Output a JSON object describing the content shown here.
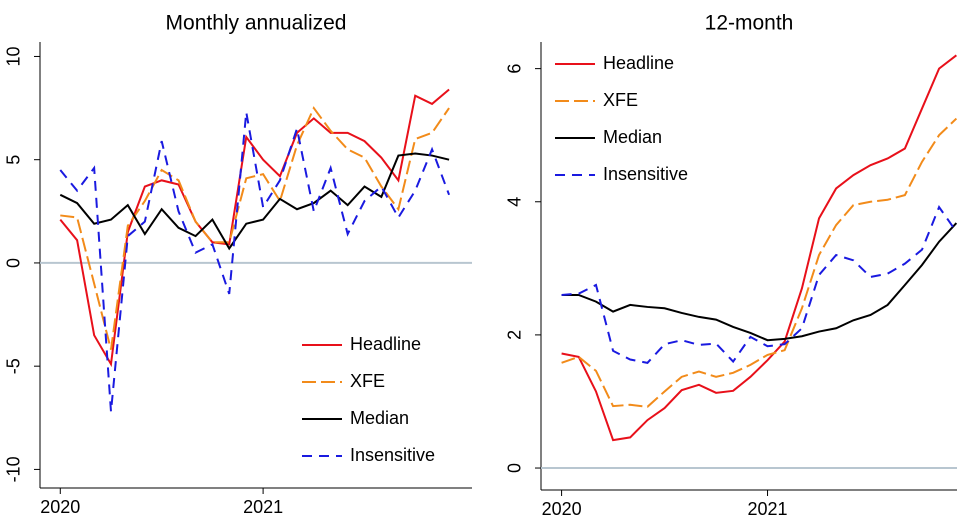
{
  "chart_data": [
    {
      "type": "line",
      "title": "Monthly annualized",
      "x": [
        2020,
        2020.083,
        2020.167,
        2020.25,
        2020.333,
        2020.417,
        2020.5,
        2020.583,
        2020.667,
        2020.75,
        2020.833,
        2020.917,
        2021,
        2021.083,
        2021.167,
        2021.25,
        2021.333,
        2021.417,
        2021.5,
        2021.583,
        2021.667,
        2021.75,
        2021.833,
        2021.917
      ],
      "xlim": [
        2019.9,
        2022.03
      ],
      "xticks": [
        2020,
        2021
      ],
      "ylim": [
        -10.9,
        10.7
      ],
      "yticks": [
        -10,
        -5,
        0,
        5,
        10
      ],
      "legend": "bottom-right",
      "series": [
        {
          "name": "Headline",
          "color": "#e8101a",
          "dash": "solid",
          "values": [
            2.1,
            1.1,
            -3.5,
            -4.9,
            1.5,
            3.7,
            4.0,
            3.8,
            2.0,
            1.0,
            0.9,
            6.1,
            5.0,
            4.2,
            6.3,
            7.0,
            6.3,
            6.3,
            5.9,
            5.1,
            4.0,
            8.1,
            7.7,
            8.4
          ]
        },
        {
          "name": "XFE",
          "color": "#f28b1a",
          "dash": "long",
          "values": [
            2.3,
            2.2,
            -1.0,
            -4.2,
            1.8,
            3.0,
            4.5,
            4.0,
            2.0,
            1.0,
            1.0,
            4.1,
            4.3,
            3.0,
            5.7,
            7.5,
            6.4,
            5.5,
            5.1,
            3.7,
            2.6,
            6.0,
            6.3,
            7.5
          ]
        },
        {
          "name": "Median",
          "color": "#000000",
          "dash": "solid",
          "values": [
            3.3,
            2.9,
            1.9,
            2.1,
            2.8,
            1.4,
            2.6,
            1.7,
            1.3,
            2.1,
            0.7,
            1.9,
            2.1,
            3.1,
            2.6,
            2.9,
            3.5,
            2.8,
            3.7,
            3.2,
            5.2,
            5.3,
            5.2,
            5.0
          ]
        },
        {
          "name": "Insensitive",
          "color": "#1a1ae0",
          "dash": "dash",
          "values": [
            4.5,
            3.5,
            4.6,
            -7.2,
            1.3,
            2.0,
            5.9,
            2.5,
            0.5,
            0.9,
            -1.5,
            7.3,
            2.7,
            4.0,
            6.5,
            2.5,
            4.6,
            1.4,
            3.0,
            3.7,
            2.2,
            3.5,
            5.5,
            3.3
          ]
        }
      ]
    },
    {
      "type": "line",
      "title": "12-month",
      "x": [
        2020,
        2020.083,
        2020.167,
        2020.25,
        2020.333,
        2020.417,
        2020.5,
        2020.583,
        2020.667,
        2020.75,
        2020.833,
        2020.917,
        2021,
        2021.083,
        2021.167,
        2021.25,
        2021.333,
        2021.417,
        2021.5,
        2021.583,
        2021.667,
        2021.75,
        2021.833,
        2021.917
      ],
      "xlim": [
        2019.9,
        2021.92
      ],
      "xticks": [
        2020,
        2021
      ],
      "ylim": [
        -0.33,
        6.4
      ],
      "yticks": [
        0,
        2,
        4,
        6
      ],
      "legend": "top-left",
      "series": [
        {
          "name": "Headline",
          "color": "#e8101a",
          "dash": "solid",
          "values": [
            1.72,
            1.67,
            1.15,
            0.42,
            0.46,
            0.72,
            0.9,
            1.17,
            1.25,
            1.13,
            1.16,
            1.37,
            1.62,
            1.9,
            2.7,
            3.75,
            4.2,
            4.4,
            4.55,
            4.65,
            4.8,
            5.4,
            6.0,
            6.2
          ]
        },
        {
          "name": "XFE",
          "color": "#f28b1a",
          "dash": "long",
          "values": [
            1.58,
            1.67,
            1.46,
            0.93,
            0.95,
            0.92,
            1.15,
            1.37,
            1.45,
            1.37,
            1.43,
            1.55,
            1.7,
            1.77,
            2.4,
            3.2,
            3.65,
            3.95,
            4.0,
            4.03,
            4.1,
            4.6,
            5.0,
            5.25
          ]
        },
        {
          "name": "Median",
          "color": "#000000",
          "dash": "solid",
          "values": [
            2.6,
            2.6,
            2.5,
            2.35,
            2.45,
            2.42,
            2.4,
            2.33,
            2.27,
            2.23,
            2.12,
            2.03,
            1.92,
            1.94,
            1.98,
            2.05,
            2.1,
            2.22,
            2.3,
            2.45,
            2.75,
            3.05,
            3.4,
            3.68
          ]
        },
        {
          "name": "Insensitive",
          "color": "#1a1ae0",
          "dash": "dash",
          "values": [
            2.6,
            2.62,
            2.75,
            1.76,
            1.63,
            1.58,
            1.86,
            1.92,
            1.85,
            1.87,
            1.6,
            1.97,
            1.83,
            1.86,
            2.1,
            2.9,
            3.2,
            3.12,
            2.87,
            2.92,
            3.07,
            3.28,
            3.92,
            3.55
          ]
        }
      ]
    }
  ]
}
